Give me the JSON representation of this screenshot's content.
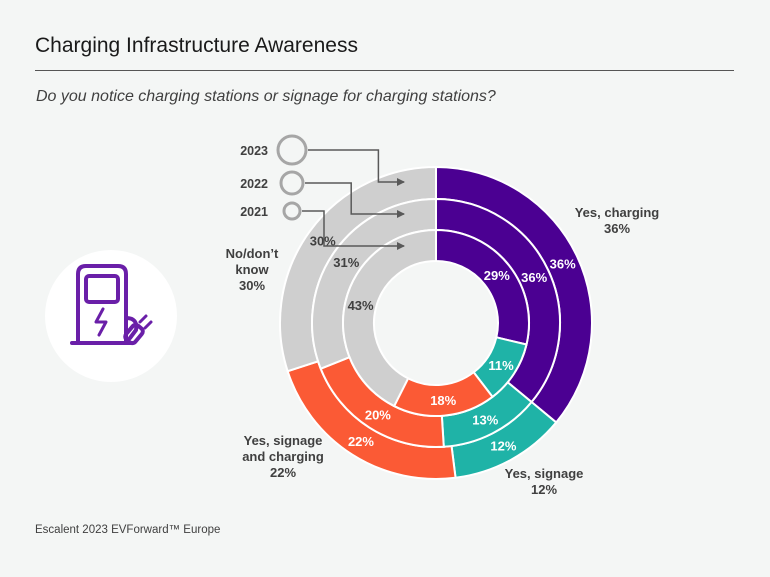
{
  "title": "Charging Infrastructure Awareness",
  "question": "Do you notice charging stations or signage for charging stations?",
  "footer": "Escalent 2023 EVForward™ Europe",
  "colors": {
    "yes_charging": "#4b0092",
    "yes_signage": "#1fb3a7",
    "yes_signage_and_charging": "#fb5a35",
    "no_dont_know": "#cfcfcf",
    "ring_border": "#ffffff",
    "year_circle": "#a6a6a6",
    "arrow": "#595959",
    "icon": "#6a1fa8"
  },
  "icon": "ev-charger-icon",
  "chart_data": {
    "type": "donut",
    "rings": [
      "2023",
      "2022",
      "2021"
    ],
    "categories": [
      "Yes, charging",
      "Yes, signage",
      "Yes, signage and charging",
      "No/don't know"
    ],
    "series": [
      {
        "name": "2023",
        "values": [
          36,
          12,
          22,
          30
        ]
      },
      {
        "name": "2022",
        "values": [
          36,
          13,
          20,
          31
        ]
      },
      {
        "name": "2021",
        "values": [
          29,
          11,
          18,
          43
        ]
      }
    ],
    "value_labels": {
      "2023": [
        "36%",
        "12%",
        "22%",
        "30%"
      ],
      "2022": [
        "36%",
        "13%",
        "20%",
        "31%"
      ],
      "2021": [
        "29%",
        "11%",
        "18%",
        "43%"
      ]
    },
    "category_labels": [
      [
        "Yes, charging",
        "36%"
      ],
      [
        "Yes, signage",
        "12%"
      ],
      [
        "Yes, signage",
        "and charging",
        "22%"
      ],
      [
        "No/don’t",
        "know",
        "30%"
      ]
    ]
  }
}
